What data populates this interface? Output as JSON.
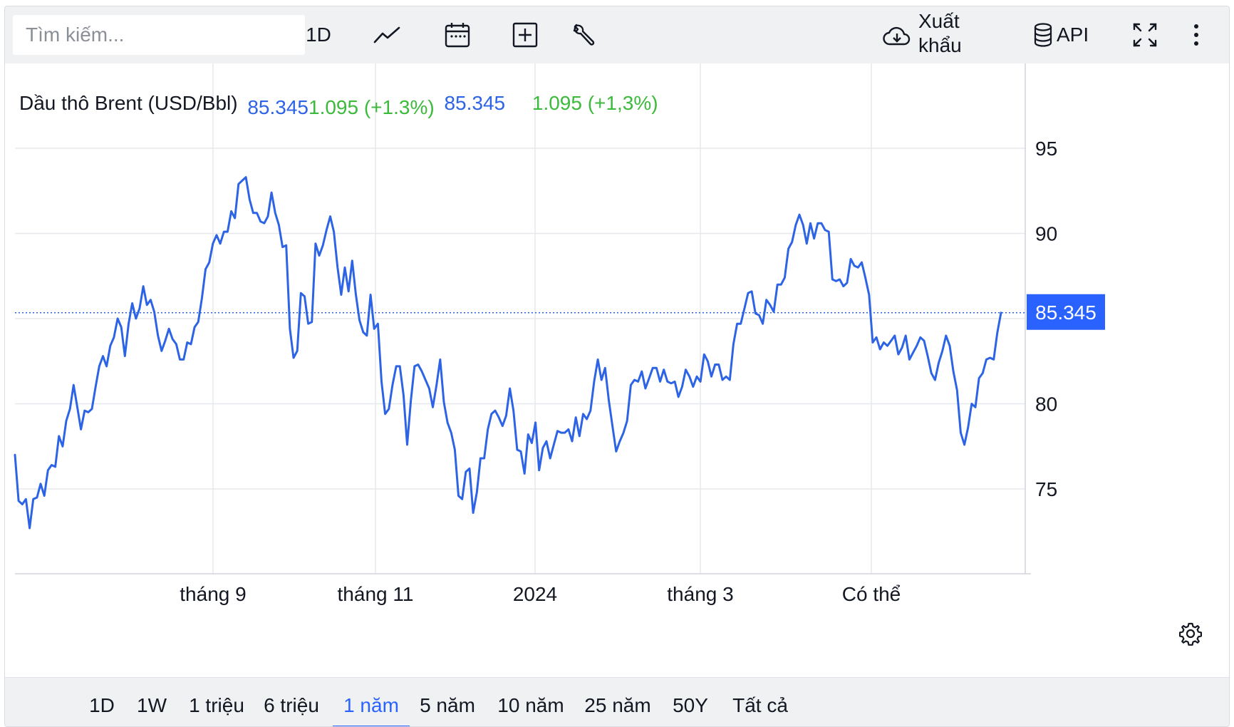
{
  "toolbar": {
    "search_placeholder": "Tìm kiếm...",
    "interval_label": "1D",
    "export_label": "Xuất khẩu",
    "api_label": "API"
  },
  "legend": {
    "title": "Dầu thô Brent (USD/Bbl)",
    "price_1": "85.345",
    "change_1": "1.095 (+1.3%)",
    "price_2": "85.345",
    "change_2": "1.095 (+1,3%)"
  },
  "colors": {
    "line": "#2d64e6",
    "up": "#3cba3c",
    "accent": "#2962ff",
    "grid": "#e6e8ec"
  },
  "range_tabs": [
    "1D",
    "1W",
    "1 triệu",
    "6 triệu",
    "1 năm",
    "5 năm",
    "10 năm",
    "25 năm",
    "50Y",
    "Tất cả"
  ],
  "active_range": "1 năm",
  "chart_data": {
    "type": "line",
    "title": "Dầu thô Brent (USD/Bbl)",
    "ylim": [
      70,
      98
    ],
    "y_ticks": [
      75,
      80,
      85,
      90,
      95
    ],
    "x_tick_labels": [
      "tháng 9",
      "tháng 11",
      "2024",
      "tháng 3",
      "Có thể"
    ],
    "last_value": 85.345,
    "last_value_label": "85.345",
    "grid": true,
    "series": [
      {
        "values": [
          77.0,
          74.3,
          74.1,
          74.4,
          72.7,
          74.4,
          74.5,
          75.3,
          74.6,
          76.1,
          76.4,
          76.3,
          78.1,
          77.5,
          79.0,
          79.7,
          81.1,
          79.8,
          78.5,
          79.6,
          79.5,
          79.7,
          81.0,
          82.2,
          82.8,
          82.2,
          83.4,
          83.9,
          85.0,
          84.5,
          82.8,
          84.7,
          85.9,
          85.0,
          85.6,
          86.9,
          85.8,
          86.1,
          85.4,
          84.0,
          83.1,
          83.7,
          84.4,
          83.8,
          83.5,
          82.6,
          82.6,
          83.6,
          83.5,
          84.5,
          84.8,
          86.2,
          87.9,
          88.3,
          89.4,
          89.9,
          89.4,
          90.1,
          90.1,
          91.3,
          90.9,
          92.9,
          93.1,
          93.3,
          92.0,
          91.2,
          91.2,
          90.7,
          90.6,
          91.0,
          92.4,
          91.2,
          90.5,
          89.2,
          89.3,
          84.4,
          82.7,
          83.1,
          86.5,
          86.3,
          84.7,
          84.8,
          89.4,
          88.7,
          89.3,
          90.2,
          91.0,
          90.1,
          88.0,
          86.4,
          88.0,
          86.6,
          88.4,
          86.4,
          84.9,
          84.2,
          84.0,
          86.4,
          84.4,
          84.7,
          81.3,
          79.4,
          79.7,
          81.1,
          82.2,
          82.2,
          80.5,
          77.6,
          80.2,
          82.2,
          82.3,
          81.9,
          81.4,
          80.9,
          79.8,
          81.1,
          82.6,
          80.1,
          78.9,
          78.3,
          77.3,
          74.6,
          74.4,
          76.0,
          76.2,
          73.6,
          74.8,
          76.8,
          76.8,
          78.5,
          79.4,
          79.6,
          79.2,
          78.7,
          79.3,
          80.9,
          79.6,
          77.3,
          77.2,
          75.9,
          78.2,
          77.7,
          78.9,
          76.1,
          77.4,
          77.8,
          76.8,
          77.6,
          78.4,
          78.3,
          78.3,
          78.5,
          77.8,
          79.2,
          78.1,
          79.4,
          79.1,
          79.6,
          81.3,
          82.6,
          81.4,
          82.1,
          80.2,
          78.7,
          77.2,
          77.8,
          78.3,
          79.0,
          81.1,
          81.4,
          81.3,
          81.9,
          80.9,
          81.5,
          82.1,
          82.1,
          81.3,
          82.0,
          81.3,
          81.2,
          81.3,
          80.4,
          81.0,
          82.0,
          81.6,
          81.0,
          81.6,
          81.3,
          82.9,
          82.5,
          81.6,
          82.3,
          82.3,
          81.4,
          81.6,
          81.4,
          83.5,
          84.7,
          84.7,
          85.6,
          86.5,
          86.6,
          85.3,
          85.2,
          84.7,
          86.1,
          85.8,
          85.4,
          87.0,
          87.0,
          87.4,
          89.1,
          89.5,
          90.5,
          91.1,
          90.5,
          89.4,
          90.6,
          89.7,
          90.6,
          90.6,
          90.2,
          90.1,
          87.3,
          87.2,
          87.3,
          86.9,
          87.1,
          88.5,
          88.1,
          88.0,
          88.3,
          87.4,
          86.4,
          83.6,
          83.9,
          83.2,
          83.6,
          83.4,
          83.7,
          84.0,
          82.9,
          83.3,
          84.0,
          82.6,
          83.0,
          83.4,
          83.9,
          83.7,
          82.8,
          81.8,
          81.4,
          82.4,
          83.1,
          84.0,
          83.4,
          81.9,
          80.8,
          78.3,
          77.6,
          78.6,
          80.0,
          79.8,
          81.5,
          81.8,
          82.6,
          82.7,
          82.6,
          84.2,
          85.345
        ]
      }
    ]
  }
}
